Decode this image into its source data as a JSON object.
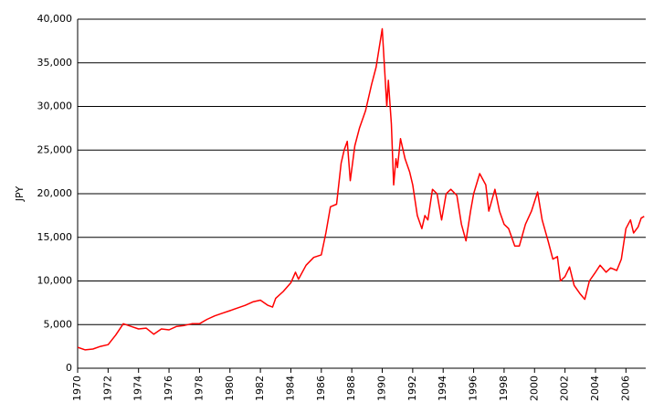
{
  "chart_data": {
    "type": "line",
    "y_label": "JPY",
    "color": "#ff0000",
    "grid": true,
    "xlim": [
      1970,
      2007.3
    ],
    "xticks": [
      1970,
      1972,
      1974,
      1976,
      1978,
      1980,
      1982,
      1984,
      1986,
      1988,
      1990,
      1992,
      1994,
      1996,
      1998,
      2000,
      2002,
      2004,
      2006
    ],
    "ylim": [
      0,
      40000
    ],
    "yticks": [
      0,
      {
        "value": 5000,
        "label": "5,000"
      },
      {
        "value": 10000,
        "label": "10,000"
      },
      {
        "value": 15000,
        "label": "15,000"
      },
      {
        "value": 20000,
        "label": "20,000"
      },
      {
        "value": 25000,
        "label": "25,000"
      },
      {
        "value": 30000,
        "label": "30,000"
      },
      {
        "value": 35000,
        "label": "35,000"
      },
      {
        "value": 40000,
        "label": "40,000"
      }
    ],
    "x": [
      1970.0,
      1970.5,
      1971.0,
      1971.5,
      1972.0,
      1972.5,
      1973.0,
      1973.5,
      1974.0,
      1974.5,
      1975.0,
      1975.5,
      1976.0,
      1976.5,
      1977.0,
      1977.5,
      1978.0,
      1978.5,
      1979.0,
      1979.5,
      1980.0,
      1980.5,
      1981.0,
      1981.5,
      1982.0,
      1982.5,
      1982.8,
      1983.0,
      1983.5,
      1984.0,
      1984.3,
      1984.5,
      1985.0,
      1985.5,
      1986.0,
      1986.3,
      1986.6,
      1987.0,
      1987.3,
      1987.5,
      1987.7,
      1987.9,
      1988.2,
      1988.5,
      1988.9,
      1989.3,
      1989.6,
      1990.0,
      1990.3,
      1990.4,
      1990.6,
      1990.75,
      1990.9,
      1991.0,
      1991.2,
      1991.5,
      1991.8,
      1992.0,
      1992.3,
      1992.6,
      1992.8,
      1993.0,
      1993.3,
      1993.6,
      1993.9,
      1994.2,
      1994.5,
      1994.9,
      1995.2,
      1995.5,
      1995.8,
      1996.0,
      1996.4,
      1996.8,
      1997.0,
      1997.4,
      1997.7,
      1998.0,
      1998.3,
      1998.7,
      1999.0,
      1999.4,
      1999.8,
      2000.2,
      2000.5,
      2000.9,
      2001.2,
      2001.5,
      2001.7,
      2002.0,
      2002.3,
      2002.6,
      2003.0,
      2003.3,
      2003.6,
      2004.0,
      2004.3,
      2004.7,
      2005.0,
      2005.4,
      2005.7,
      2006.0,
      2006.3,
      2006.5,
      2006.8,
      2007.0,
      2007.2
    ],
    "values": [
      2400,
      2100,
      2200,
      2500,
      2700,
      3800,
      5100,
      4800,
      4500,
      4600,
      3900,
      4500,
      4400,
      4800,
      4900,
      5100,
      5100,
      5600,
      6000,
      6300,
      6600,
      6900,
      7200,
      7600,
      7800,
      7200,
      7000,
      8000,
      8800,
      9800,
      11000,
      10200,
      11800,
      12700,
      13000,
      15500,
      18500,
      18800,
      23500,
      25000,
      26000,
      21500,
      25500,
      27500,
      29500,
      32500,
      34500,
      38900,
      30000,
      33000,
      28000,
      21000,
      24000,
      23000,
      26300,
      24000,
      22500,
      21000,
      17500,
      16000,
      17500,
      17000,
      20500,
      20000,
      17000,
      20000,
      20500,
      19800,
      16500,
      14600,
      18000,
      20000,
      22300,
      21000,
      18000,
      20500,
      18000,
      16500,
      16000,
      14000,
      14000,
      16500,
      18000,
      20200,
      17000,
      14500,
      12500,
      12800,
      10000,
      10500,
      11600,
      9500,
      8500,
      7900,
      10000,
      11000,
      11800,
      11000,
      11500,
      11200,
      12500,
      16000,
      17000,
      15500,
      16200,
      17200,
      17400
    ]
  }
}
